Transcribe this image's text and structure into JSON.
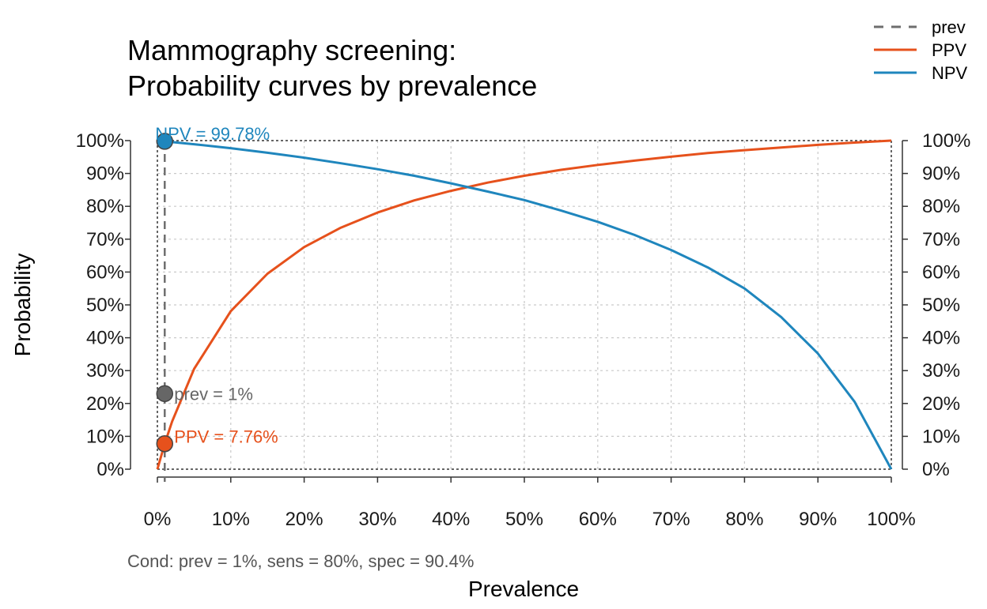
{
  "chart_data": {
    "type": "line",
    "title_lines": [
      "Mammography screening:",
      "Probability curves by prevalence"
    ],
    "xlabel": "Prevalence",
    "ylabel": "Probability",
    "xlim": [
      0,
      100
    ],
    "ylim": [
      0,
      100
    ],
    "grid": true,
    "legend_position": "top-right",
    "x_ticks": [
      0,
      10,
      20,
      30,
      40,
      50,
      60,
      70,
      80,
      90,
      100
    ],
    "x_tick_labels": [
      "0%",
      "10%",
      "20%",
      "30%",
      "40%",
      "50%",
      "60%",
      "70%",
      "80%",
      "90%",
      "100%"
    ],
    "y_ticks": [
      0,
      10,
      20,
      30,
      40,
      50,
      60,
      70,
      80,
      90,
      100
    ],
    "y_tick_labels": [
      "0%",
      "10%",
      "20%",
      "30%",
      "40%",
      "50%",
      "60%",
      "70%",
      "80%",
      "90%",
      "100%"
    ],
    "condition_text": "Cond:  prev = 1%, sens = 80%, spec = 90.4%",
    "parameters": {
      "prev": 1,
      "sens": 80,
      "spec": 90.4
    },
    "legend": [
      {
        "name": "prev",
        "color": "#6e6e6e",
        "style": "dashed"
      },
      {
        "name": "PPV",
        "color": "#e6511c",
        "style": "solid"
      },
      {
        "name": "NPV",
        "color": "#1f86bd",
        "style": "solid"
      }
    ],
    "series": [
      {
        "name": "PPV",
        "color": "#e6511c",
        "x": [
          0,
          1,
          2,
          5,
          10,
          15,
          20,
          25,
          30,
          35,
          40,
          45,
          50,
          55,
          60,
          65,
          70,
          75,
          80,
          85,
          90,
          95,
          100
        ],
        "values": [
          0,
          7.76,
          14.5,
          30.5,
          48.1,
          59.5,
          67.6,
          73.5,
          78.1,
          81.8,
          84.7,
          87.2,
          89.3,
          91.1,
          92.6,
          93.9,
          95.1,
          96.2,
          97.1,
          97.9,
          98.7,
          99.4,
          100
        ]
      },
      {
        "name": "NPV",
        "color": "#1f86bd",
        "x": [
          0,
          1,
          2,
          5,
          10,
          15,
          20,
          25,
          30,
          35,
          40,
          45,
          50,
          55,
          60,
          65,
          70,
          75,
          80,
          85,
          90,
          95,
          100
        ],
        "values": [
          100,
          99.78,
          99.55,
          98.9,
          97.7,
          96.3,
          94.8,
          93.1,
          91.3,
          89.3,
          87.0,
          84.5,
          81.9,
          78.7,
          75.3,
          71.3,
          66.7,
          61.4,
          55.0,
          46.3,
          35.2,
          20.5,
          0
        ]
      }
    ],
    "markers": [
      {
        "name": "NPV",
        "x": 1,
        "y": 99.78,
        "label": "NPV = 99.78%",
        "color": "#1f86bd"
      },
      {
        "name": "prev",
        "x": 1,
        "y": 23,
        "label": "prev = 1%",
        "color": "#666666"
      },
      {
        "name": "PPV",
        "x": 1,
        "y": 7.76,
        "label": "PPV = 7.76%",
        "color": "#e6511c"
      }
    ],
    "prev_line_x": 1
  }
}
